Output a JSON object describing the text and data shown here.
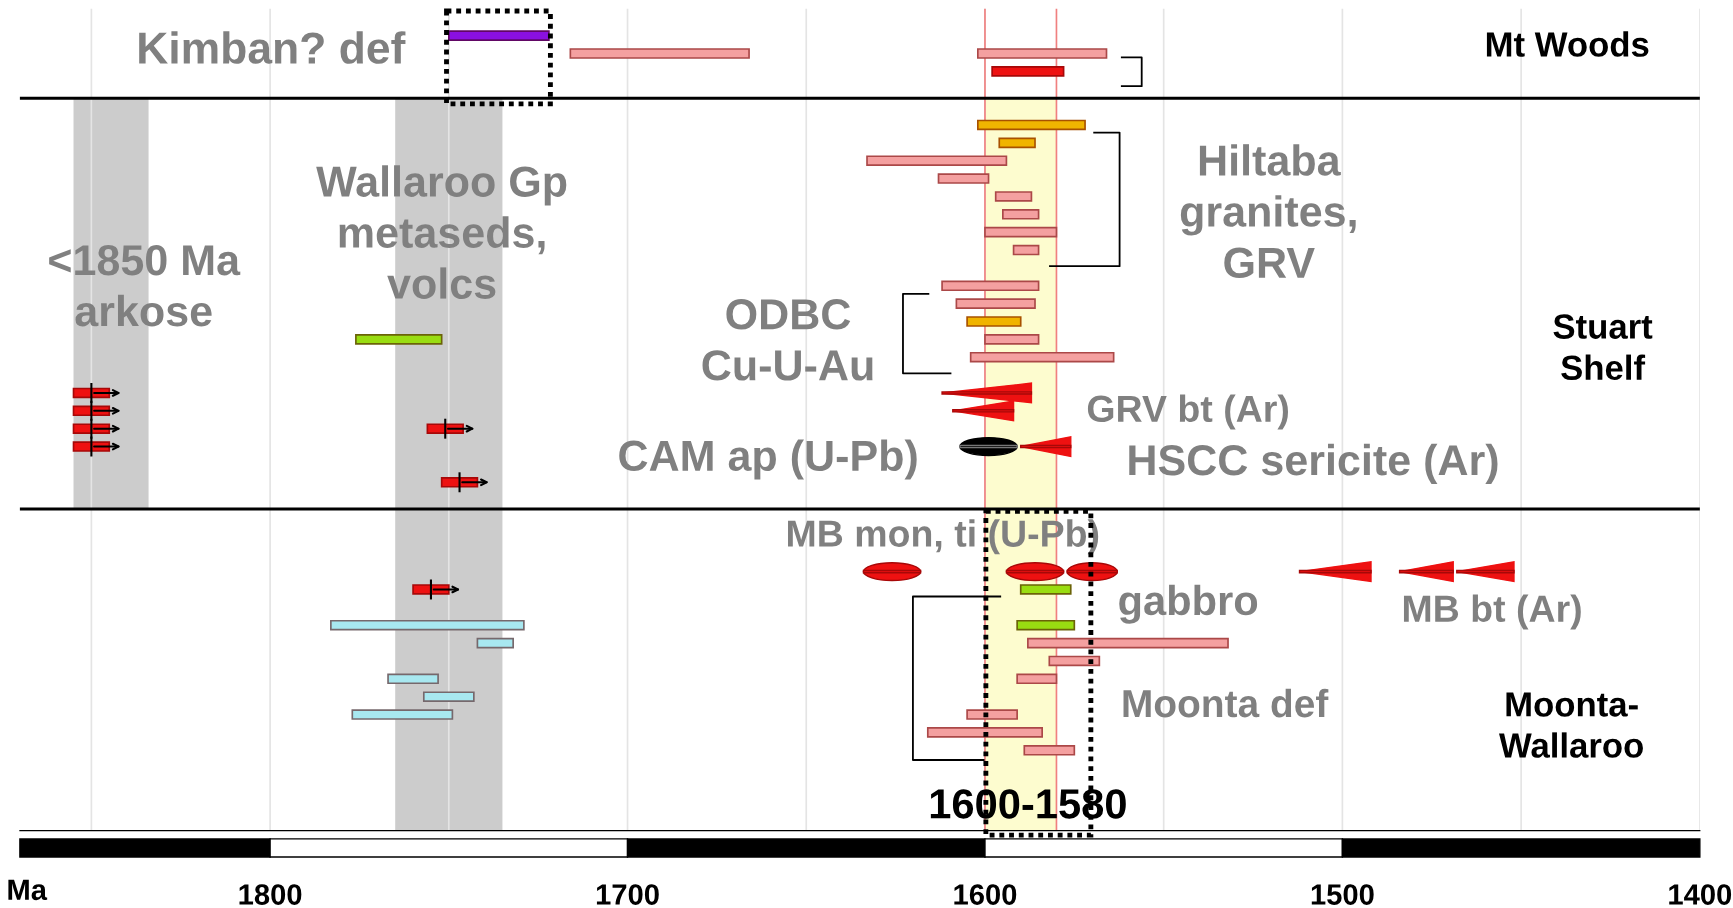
{
  "chart_data": {
    "type": "bar",
    "orientation": "horizontal",
    "categories": [
      null,
      null,
      null,
      null,
      null,
      null,
      null,
      null,
      null,
      null,
      null,
      null,
      null,
      null,
      null,
      null,
      null,
      null,
      null,
      null,
      null,
      null,
      null,
      null,
      null,
      null,
      null,
      null,
      null,
      null,
      null,
      null,
      null,
      null,
      null,
      null,
      null,
      null,
      null,
      null,
      null,
      null,
      null,
      null,
      null,
      null
    ],
    "series": [
      {
        "color": "#8a10e0",
        "values": [
          null,
          28,
          null,
          null,
          null,
          null,
          null,
          null,
          null,
          null,
          null,
          null,
          null,
          null,
          null,
          null,
          null,
          null,
          null,
          null,
          null,
          null,
          null,
          null,
          null,
          null,
          null,
          null,
          null,
          null,
          null,
          null,
          null,
          null,
          null,
          null,
          null,
          null,
          null,
          null,
          null,
          null,
          null,
          null,
          null,
          null
        ],
        "base": [
          null,
          1722,
          null,
          null,
          null,
          null,
          null,
          null,
          null,
          null,
          null,
          null,
          null,
          null,
          null,
          null,
          null,
          null,
          null,
          null,
          null,
          null,
          null,
          null,
          null,
          null,
          null,
          null,
          null,
          null,
          null,
          null,
          null,
          null,
          null,
          null,
          null,
          null,
          null,
          null,
          null,
          null,
          null,
          null,
          null,
          null
        ]
      },
      {
        "color": "#f4a0a0",
        "values": [
          null,
          null,
          50,
          null,
          null,
          null,
          null,
          null,
          39,
          14,
          10,
          10,
          20,
          7,
          null,
          27,
          22,
          null,
          15,
          40,
          null,
          null,
          null,
          null,
          null,
          null,
          null,
          null,
          null,
          null,
          null,
          null,
          null,
          null,
          null,
          56,
          14,
          11,
          null,
          14,
          32,
          14,
          null,
          null,
          null,
          null
        ],
        "base": [
          null,
          null,
          1666,
          null,
          null,
          null,
          null,
          null,
          1594,
          1599,
          1587,
          1585,
          1580,
          1585,
          null,
          1585,
          1586,
          null,
          1585,
          1564,
          null,
          null,
          null,
          null,
          null,
          null,
          null,
          null,
          null,
          null,
          null,
          null,
          null,
          null,
          null,
          1532,
          1568,
          1580,
          null,
          1591,
          1584,
          1575,
          null,
          null,
          null,
          null
        ]
      },
      {
        "color": "#f4a0a0",
        "values": [
          null,
          null,
          36,
          null,
          null,
          null,
          null,
          null,
          null,
          null,
          null,
          null,
          null,
          null,
          null,
          null,
          null,
          null,
          null,
          null,
          null,
          null,
          null,
          null,
          null,
          null,
          null,
          null,
          null,
          null,
          null,
          null,
          null,
          null,
          null,
          null,
          null,
          null,
          null,
          null,
          null,
          null,
          null,
          null,
          null,
          null
        ],
        "base": [
          null,
          null,
          1566,
          null,
          null,
          null,
          null,
          null,
          null,
          null,
          null,
          null,
          null,
          null,
          null,
          null,
          null,
          null,
          null,
          null,
          null,
          null,
          null,
          null,
          null,
          null,
          null,
          null,
          null,
          null,
          null,
          null,
          null,
          null,
          null,
          null,
          null,
          null,
          null,
          null,
          null,
          null,
          null,
          null,
          null,
          null
        ]
      },
      {
        "color": "#ee1111",
        "values": [
          null,
          null,
          null,
          20,
          null,
          null,
          null,
          null,
          null,
          null,
          null,
          null,
          null,
          null,
          null,
          null,
          null,
          null,
          null,
          null,
          null,
          null,
          null,
          null,
          null,
          null,
          null,
          null,
          null,
          null,
          null,
          null,
          null,
          null,
          null,
          null,
          null,
          null,
          null,
          null,
          null,
          null,
          null,
          null,
          null,
          null
        ],
        "base": [
          null,
          null,
          null,
          1578,
          null,
          null,
          null,
          null,
          null,
          null,
          null,
          null,
          null,
          null,
          null,
          null,
          null,
          null,
          null,
          null,
          null,
          null,
          null,
          null,
          null,
          null,
          null,
          null,
          null,
          null,
          null,
          null,
          null,
          null,
          null,
          null,
          null,
          null,
          null,
          null,
          null,
          null,
          null,
          null,
          null,
          null
        ]
      },
      {
        "color": "#f0b400",
        "values": [
          null,
          null,
          null,
          null,
          null,
          null,
          30,
          10,
          null,
          null,
          null,
          null,
          null,
          null,
          null,
          null,
          null,
          15,
          null,
          null,
          null,
          null,
          null,
          null,
          null,
          null,
          null,
          null,
          null,
          null,
          null,
          null,
          null,
          null,
          null,
          null,
          null,
          null,
          null,
          null,
          null,
          null,
          null,
          null,
          null,
          null
        ],
        "base": [
          null,
          null,
          null,
          null,
          null,
          null,
          1572,
          1586,
          null,
          null,
          null,
          null,
          null,
          null,
          null,
          null,
          null,
          1590,
          null,
          null,
          null,
          null,
          null,
          null,
          null,
          null,
          null,
          null,
          null,
          null,
          null,
          null,
          null,
          null,
          null,
          null,
          null,
          null,
          null,
          null,
          null,
          null,
          null,
          null,
          null,
          null
        ]
      },
      {
        "color": "#99dd11",
        "values": [
          null,
          null,
          null,
          null,
          null,
          null,
          null,
          null,
          null,
          null,
          null,
          null,
          null,
          null,
          null,
          null,
          null,
          null,
          24,
          null,
          null,
          null,
          null,
          null,
          null,
          null,
          null,
          null,
          null,
          null,
          null,
          null,
          14,
          null,
          16,
          null,
          null,
          null,
          null,
          null,
          null,
          null,
          null,
          null,
          null,
          null
        ],
        "base": [
          null,
          null,
          null,
          null,
          null,
          null,
          null,
          null,
          null,
          null,
          null,
          null,
          null,
          null,
          null,
          null,
          null,
          null,
          1752,
          null,
          null,
          null,
          null,
          null,
          null,
          null,
          null,
          null,
          null,
          null,
          null,
          null,
          1576,
          null,
          1575,
          null,
          null,
          null,
          null,
          null,
          null,
          null,
          null,
          null,
          null,
          null
        ]
      },
      {
        "color": "#a8e8f0",
        "values": [
          null,
          null,
          null,
          null,
          null,
          null,
          null,
          null,
          null,
          null,
          null,
          null,
          null,
          null,
          null,
          null,
          null,
          null,
          null,
          null,
          null,
          null,
          null,
          null,
          null,
          null,
          null,
          null,
          null,
          null,
          null,
          null,
          null,
          null,
          54,
          10,
          null,
          14,
          14,
          28,
          null,
          null,
          null,
          null,
          null,
          null
        ],
        "base": [
          null,
          null,
          null,
          null,
          null,
          null,
          null,
          null,
          null,
          null,
          null,
          null,
          null,
          null,
          null,
          null,
          null,
          null,
          null,
          null,
          null,
          null,
          null,
          null,
          null,
          null,
          null,
          null,
          null,
          null,
          null,
          null,
          null,
          null,
          1729,
          1732,
          null,
          1753,
          1743,
          1749,
          null,
          null,
          null,
          null,
          null,
          null
        ]
      },
      {
        "color": "#ee1111",
        "marker": "cross",
        "values": [
          null,
          null,
          null,
          null,
          null,
          null,
          null,
          null,
          null,
          null,
          null,
          null,
          null,
          null,
          null,
          null,
          null,
          null,
          null,
          null,
          null,
          10,
          10,
          10,
          10,
          null,
          10,
          null,
          null,
          null,
          null,
          null,
          10,
          null,
          null,
          null,
          null,
          null,
          null,
          null,
          null,
          null,
          null,
          null,
          null,
          null
        ],
        "base": [
          null,
          null,
          null,
          null,
          null,
          null,
          null,
          null,
          null,
          null,
          null,
          null,
          null,
          null,
          null,
          null,
          null,
          null,
          null,
          null,
          null,
          1845,
          1845,
          1845,
          1845,
          null,
          1742,
          null,
          null,
          null,
          null,
          null,
          1750,
          null,
          null,
          null,
          null,
          null,
          null,
          null,
          null,
          null,
          null,
          null,
          null,
          null
        ]
      },
      {
        "color": "#ee1111",
        "marker": "cross",
        "values": [
          null,
          null,
          null,
          null,
          null,
          null,
          null,
          null,
          null,
          null,
          null,
          null,
          null,
          null,
          null,
          null,
          null,
          null,
          null,
          null,
          null,
          null,
          null,
          10,
          null,
          null,
          null,
          null,
          null,
          null,
          null,
          null,
          null,
          null,
          null,
          null,
          null,
          null,
          null,
          null,
          null,
          null,
          null,
          null,
          null,
          null
        ],
        "base": [
          null,
          null,
          null,
          null,
          null,
          null,
          null,
          null,
          null,
          null,
          null,
          null,
          null,
          null,
          null,
          null,
          null,
          null,
          null,
          null,
          null,
          null,
          null,
          1746,
          null,
          null,
          null,
          null,
          null,
          null,
          null,
          null,
          null,
          null,
          null,
          null,
          null,
          null,
          null,
          null,
          null,
          null,
          null,
          null,
          null,
          null
        ]
      },
      {
        "color": "#ee1111",
        "marker": "triangle",
        "values": [
          null,
          null,
          null,
          null,
          null,
          null,
          null,
          null,
          null,
          null,
          null,
          null,
          null,
          null,
          null,
          null,
          null,
          null,
          null,
          null,
          null,
          25,
          17,
          null,
          14,
          null,
          null,
          null,
          null,
          null,
          null,
          20,
          null,
          null,
          null,
          null,
          null,
          null,
          null,
          null,
          null,
          null,
          null,
          null,
          null,
          null
        ],
        "base": [
          null,
          null,
          null,
          null,
          null,
          null,
          null,
          null,
          null,
          null,
          null,
          null,
          null,
          null,
          null,
          null,
          null,
          null,
          null,
          null,
          null,
          1587,
          1592,
          null,
          1576,
          null,
          null,
          null,
          null,
          null,
          null,
          1492,
          null,
          null,
          null,
          null,
          null,
          null,
          null,
          null,
          null,
          null,
          null,
          null,
          null,
          null
        ]
      },
      {
        "color": "#ee1111",
        "marker": "triangle",
        "values": [
          null,
          null,
          null,
          null,
          null,
          null,
          null,
          null,
          null,
          null,
          null,
          null,
          null,
          null,
          null,
          null,
          null,
          null,
          null,
          null,
          null,
          null,
          null,
          null,
          null,
          null,
          null,
          null,
          null,
          null,
          null,
          15,
          null,
          null,
          null,
          null,
          null,
          null,
          null,
          null,
          null,
          null,
          null,
          null,
          null,
          null
        ],
        "base": [
          null,
          null,
          null,
          null,
          null,
          null,
          null,
          null,
          null,
          null,
          null,
          null,
          null,
          null,
          null,
          null,
          null,
          null,
          null,
          null,
          null,
          null,
          null,
          null,
          null,
          null,
          null,
          null,
          null,
          null,
          null,
          1469,
          null,
          null,
          null,
          null,
          null,
          null,
          null,
          null,
          null,
          null,
          null,
          null,
          null,
          null
        ]
      },
      {
        "color": "#ee1111",
        "marker": "triangle",
        "values": [
          null,
          null,
          null,
          null,
          null,
          null,
          null,
          null,
          null,
          null,
          null,
          null,
          null,
          null,
          null,
          null,
          null,
          null,
          null,
          null,
          null,
          null,
          null,
          null,
          null,
          null,
          null,
          null,
          null,
          null,
          null,
          16,
          null,
          null,
          null,
          null,
          null,
          null,
          null,
          null,
          null,
          null,
          null,
          null,
          null,
          null
        ],
        "base": [
          null,
          null,
          null,
          null,
          null,
          null,
          null,
          null,
          null,
          null,
          null,
          null,
          null,
          null,
          null,
          null,
          null,
          null,
          null,
          null,
          null,
          null,
          null,
          null,
          null,
          null,
          null,
          null,
          null,
          null,
          null,
          1452,
          null,
          null,
          null,
          null,
          null,
          null,
          null,
          null,
          null,
          null,
          null,
          null,
          null,
          null
        ]
      },
      {
        "color": "#000000",
        "marker": "circle",
        "values": [
          null,
          null,
          null,
          null,
          null,
          null,
          null,
          null,
          null,
          null,
          null,
          null,
          null,
          null,
          null,
          null,
          null,
          null,
          null,
          null,
          null,
          null,
          null,
          null,
          16,
          null,
          null,
          null,
          null,
          null,
          null,
          null,
          null,
          null,
          null,
          null,
          null,
          null,
          null,
          null,
          null,
          null,
          null,
          null,
          null,
          null
        ],
        "base": [
          null,
          null,
          null,
          null,
          null,
          null,
          null,
          null,
          null,
          null,
          null,
          null,
          null,
          null,
          null,
          null,
          null,
          null,
          null,
          null,
          null,
          null,
          null,
          null,
          1591,
          null,
          null,
          null,
          null,
          null,
          null,
          null,
          null,
          null,
          null,
          null,
          null,
          null,
          null,
          null,
          null,
          null,
          null,
          null,
          null,
          null
        ]
      },
      {
        "color": "#ee1111",
        "marker": "circle",
        "values": [
          null,
          null,
          null,
          null,
          null,
          null,
          null,
          null,
          null,
          null,
          null,
          null,
          null,
          null,
          null,
          null,
          null,
          null,
          null,
          null,
          null,
          null,
          null,
          null,
          null,
          null,
          null,
          null,
          null,
          null,
          null,
          16,
          null,
          null,
          null,
          null,
          null,
          null,
          null,
          null,
          null,
          null,
          null,
          null,
          null,
          null
        ],
        "base": [
          null,
          null,
          null,
          null,
          null,
          null,
          null,
          null,
          null,
          null,
          null,
          null,
          null,
          null,
          null,
          null,
          null,
          null,
          null,
          null,
          null,
          null,
          null,
          null,
          null,
          null,
          null,
          null,
          null,
          null,
          null,
          1618,
          null,
          null,
          null,
          null,
          null,
          null,
          null,
          null,
          null,
          null,
          null,
          null,
          null,
          null
        ]
      },
      {
        "color": "#ee1111",
        "marker": "circle",
        "values": [
          null,
          null,
          null,
          null,
          null,
          null,
          null,
          null,
          null,
          null,
          null,
          null,
          null,
          null,
          null,
          null,
          null,
          null,
          null,
          null,
          null,
          null,
          null,
          null,
          null,
          null,
          null,
          null,
          null,
          null,
          null,
          16,
          null,
          null,
          null,
          null,
          null,
          null,
          null,
          null,
          null,
          null,
          null,
          null,
          null,
          null
        ],
        "base": [
          null,
          null,
          null,
          null,
          null,
          null,
          null,
          null,
          null,
          null,
          null,
          null,
          null,
          null,
          null,
          null,
          null,
          null,
          null,
          null,
          null,
          null,
          null,
          null,
          null,
          null,
          null,
          null,
          null,
          null,
          null,
          1578,
          null,
          null,
          null,
          null,
          null,
          null,
          null,
          null,
          null,
          null,
          null,
          null,
          null,
          null
        ]
      },
      {
        "color": "#ee1111",
        "marker": "circle",
        "values": [
          null,
          null,
          null,
          null,
          null,
          null,
          null,
          null,
          null,
          null,
          null,
          null,
          null,
          null,
          null,
          null,
          null,
          null,
          null,
          null,
          null,
          null,
          null,
          null,
          null,
          null,
          null,
          null,
          null,
          null,
          null,
          14,
          null,
          null,
          null,
          null,
          null,
          null,
          null,
          null,
          null,
          null,
          null,
          null,
          null,
          null
        ],
        "base": [
          null,
          null,
          null,
          null,
          null,
          null,
          null,
          null,
          null,
          null,
          null,
          null,
          null,
          null,
          null,
          null,
          null,
          null,
          null,
          null,
          null,
          null,
          null,
          null,
          null,
          null,
          null,
          null,
          null,
          null,
          null,
          1563,
          null,
          null,
          null,
          null,
          null,
          null,
          null,
          null,
          null,
          null,
          null,
          null,
          null,
          null
        ]
      }
    ],
    "xlim": [
      1870,
      1400
    ],
    "xticks": [
      {
        "value": 1850,
        "label": null
      },
      1800,
      {
        "value": 1750,
        "label": null
      },
      1700,
      {
        "value": 1650,
        "label": null
      },
      1600,
      {
        "value": 1550,
        "label": null
      },
      1500,
      {
        "value": 1450,
        "label": null
      },
      1400
    ],
    "tick_labels": "x",
    "grid": "x",
    "xlabel": "Ma",
    "ref_lines": [
      {
        "axis": "x",
        "value": 1600,
        "color": "#f08080"
      },
      {
        "axis": "x",
        "value": 1580,
        "color": "#f08080"
      }
    ],
    "bands": [
      {
        "axis": "x",
        "from": 1855,
        "to": 1834,
        "color": "#cccccc"
      },
      {
        "axis": "x",
        "from": 1765,
        "to": 1735,
        "color": "#cccccc"
      },
      {
        "axis": "x",
        "from": 1600,
        "to": 1580,
        "color": "#fdfccf"
      }
    ],
    "annotations": [
      "Kimban? def",
      "Mt Woods",
      "<1850 Ma\narkose",
      "Wallaroo Gp\nmetaseds,\nvolcs",
      "ODBC\nCu-U-Au",
      "Hiltaba\ngranites,\nGRV",
      "Stuart\nShelf",
      "GRV bt (Ar)",
      "CAM ap (U-Pb)",
      "HSCC sericite (Ar)",
      "MB mon, ti (U-Pb)",
      "gabbro",
      "MB bt (Ar)",
      "Moonta def",
      "Moonta-\nWallaroo",
      "1600-1580"
    ]
  }
}
